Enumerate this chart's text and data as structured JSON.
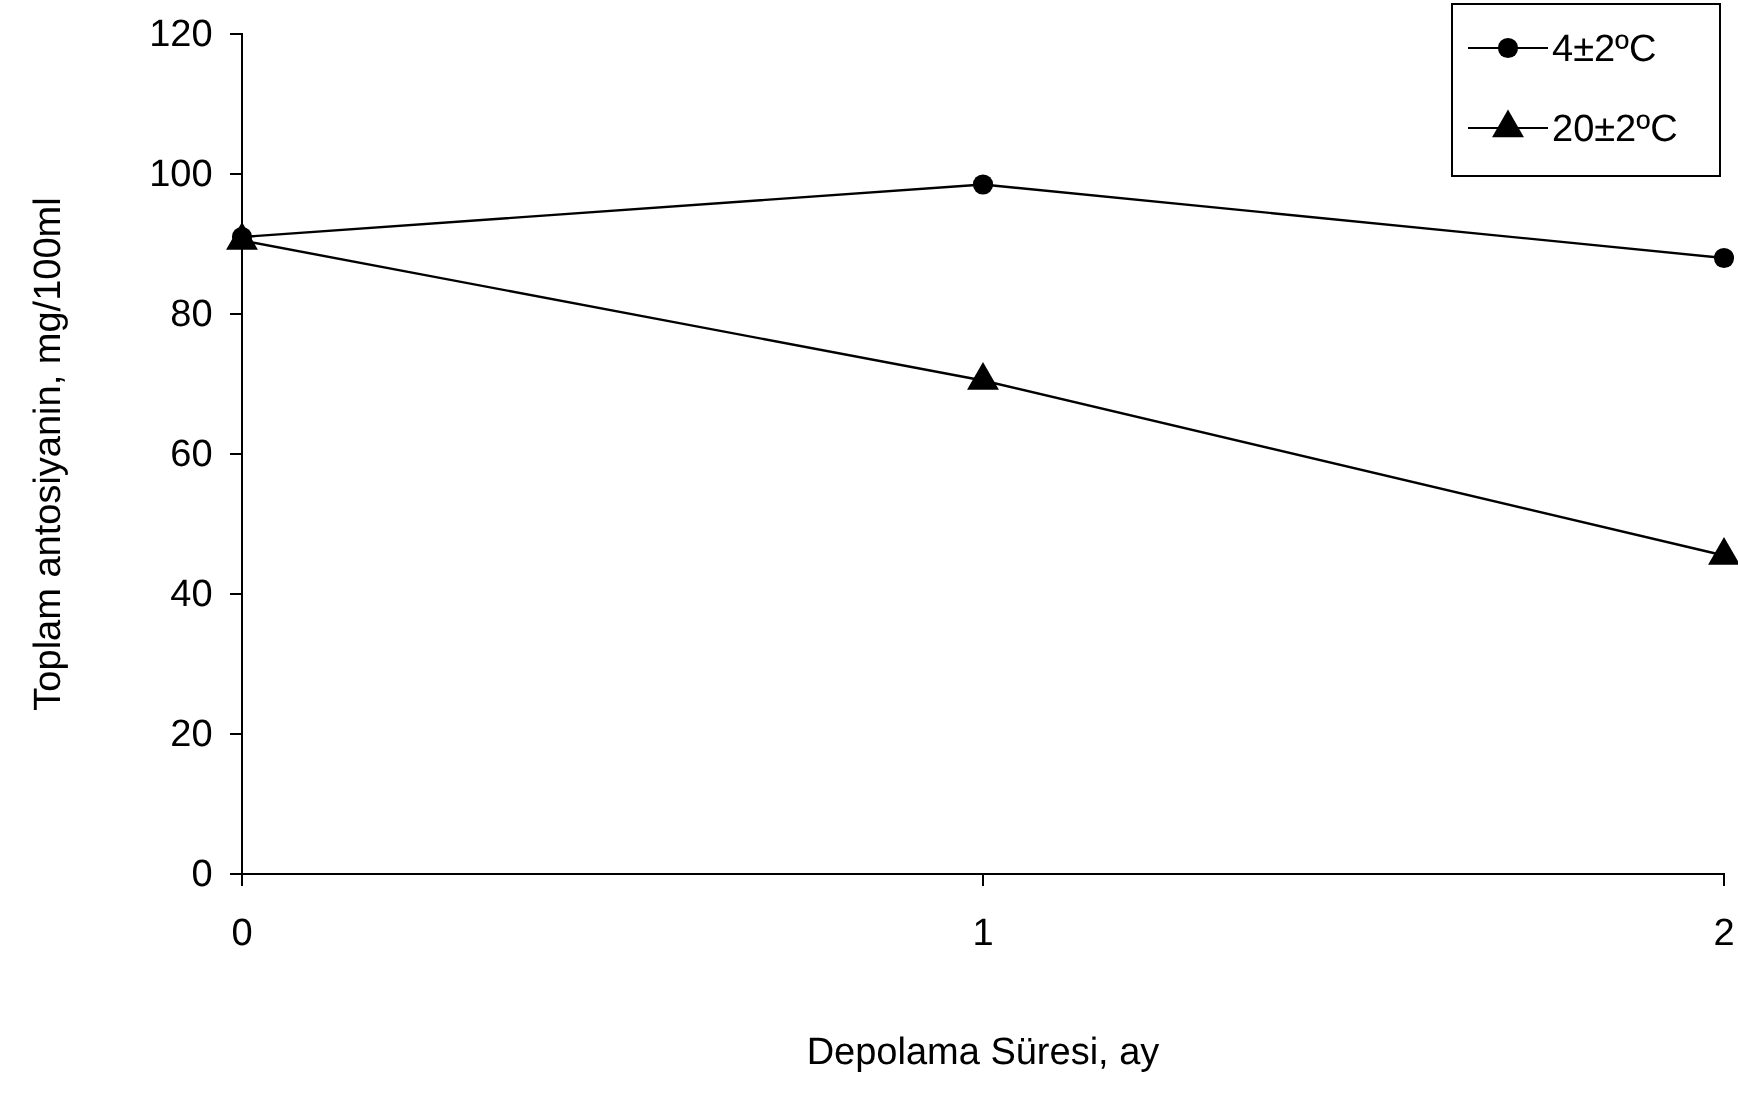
{
  "chart_data": {
    "type": "line",
    "xlabel": "Depolama Süresi, ay",
    "ylabel": "Toplam antosiyanin, mg/100ml",
    "x": [
      0,
      1,
      2
    ],
    "xlim": [
      0,
      2
    ],
    "xticks": [
      0,
      1,
      2
    ],
    "ylim": [
      0,
      120
    ],
    "yticks": [
      0,
      20,
      40,
      60,
      80,
      100,
      120
    ],
    "grid": false,
    "legend": "top right",
    "line_style": "solid",
    "series": [
      {
        "name": "4±2ºC",
        "color": "#000000",
        "marker": "circle",
        "values": [
          91,
          98.5,
          88
        ]
      },
      {
        "name": "20±2ºC",
        "color": "#000000",
        "marker": "triangle",
        "values": [
          90.5,
          70.5,
          45.5
        ]
      }
    ]
  }
}
